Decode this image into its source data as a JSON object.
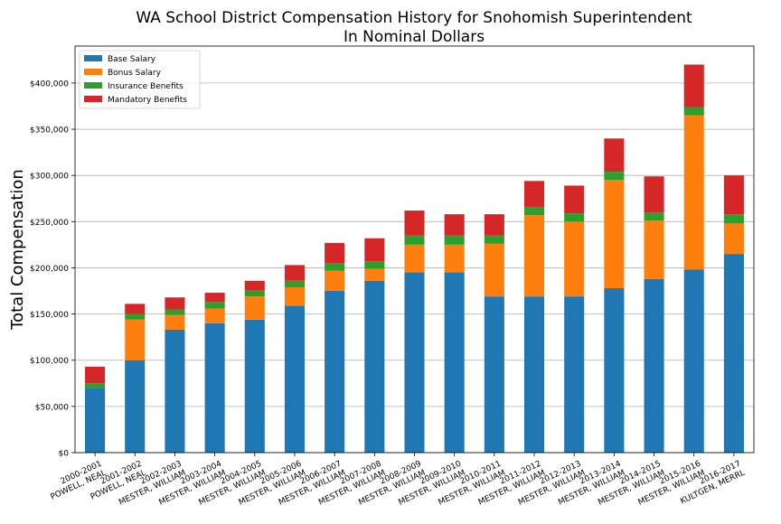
{
  "chart_data": {
    "type": "bar",
    "stacked": true,
    "title_line1": "WA School District Compensation History for Snohomish Superintendent",
    "title_line2": "In Nominal Dollars",
    "xlabel": "",
    "ylabel": "Total Compensation",
    "ylim": [
      0,
      440000
    ],
    "yticks": [
      0,
      50000,
      100000,
      150000,
      200000,
      250000,
      300000,
      350000,
      400000
    ],
    "ytick_labels": [
      "$0",
      "$50,000",
      "$100,000",
      "$150,000",
      "$200,000",
      "$250,000",
      "$300,000",
      "$350,000",
      "$400,000"
    ],
    "grid": "horizontal",
    "legend_position": "top-left",
    "categories": [
      [
        "2000-2001",
        "POWELL, NEAL"
      ],
      [
        "2001-2002",
        "POWELL, NEAL"
      ],
      [
        "2002-2003",
        "MESTER, WILLIAM"
      ],
      [
        "2003-2004",
        "MESTER, WILLIAM"
      ],
      [
        "2004-2005",
        "MESTER, WILLIAM"
      ],
      [
        "2005-2006",
        "MESTER, WILLIAM"
      ],
      [
        "2006-2007",
        "MESTER, WILLIAM"
      ],
      [
        "2007-2008",
        "MESTER, WILLIAM"
      ],
      [
        "2008-2009",
        "MESTER, WILLIAM"
      ],
      [
        "2009-2010",
        "MESTER, WILLIAM"
      ],
      [
        "2010-2011",
        "MESTER, WILLIAM"
      ],
      [
        "2011-2012",
        "MESTER, WILLIAM"
      ],
      [
        "2012-2013",
        "MESTER, WILLIAM"
      ],
      [
        "2013-2014",
        "MESTER, WILLIAM"
      ],
      [
        "2014-2015",
        "MESTER, WILLIAM"
      ],
      [
        "2015-2016",
        "MESTER, WILLIAM"
      ],
      [
        "2016-2017",
        "KULTGEN, MERRL"
      ]
    ],
    "series": [
      {
        "name": "Base Salary",
        "color": "#1f77b4",
        "values": [
          70000,
          100000,
          133000,
          140000,
          144000,
          159000,
          175000,
          186000,
          195000,
          195000,
          169000,
          169000,
          169000,
          178000,
          188000,
          198000,
          215000
        ]
      },
      {
        "name": "Bonus Salary",
        "color": "#ff7f0e",
        "values": [
          0,
          44000,
          16000,
          16000,
          25000,
          20000,
          22000,
          13000,
          30000,
          30000,
          57000,
          88000,
          81000,
          117000,
          63000,
          167000,
          33000
        ]
      },
      {
        "name": "Insurance Benefits",
        "color": "#2ca02c",
        "values": [
          5000,
          6000,
          6000,
          7000,
          7000,
          7000,
          8000,
          8000,
          10000,
          10000,
          9000,
          9000,
          9000,
          9000,
          9000,
          9000,
          10000
        ]
      },
      {
        "name": "Mandatory Benefits",
        "color": "#d62728",
        "values": [
          18000,
          11000,
          13000,
          10000,
          10000,
          17000,
          22000,
          25000,
          27000,
          23000,
          23000,
          28000,
          30000,
          36000,
          39000,
          46000,
          42000
        ]
      }
    ]
  }
}
